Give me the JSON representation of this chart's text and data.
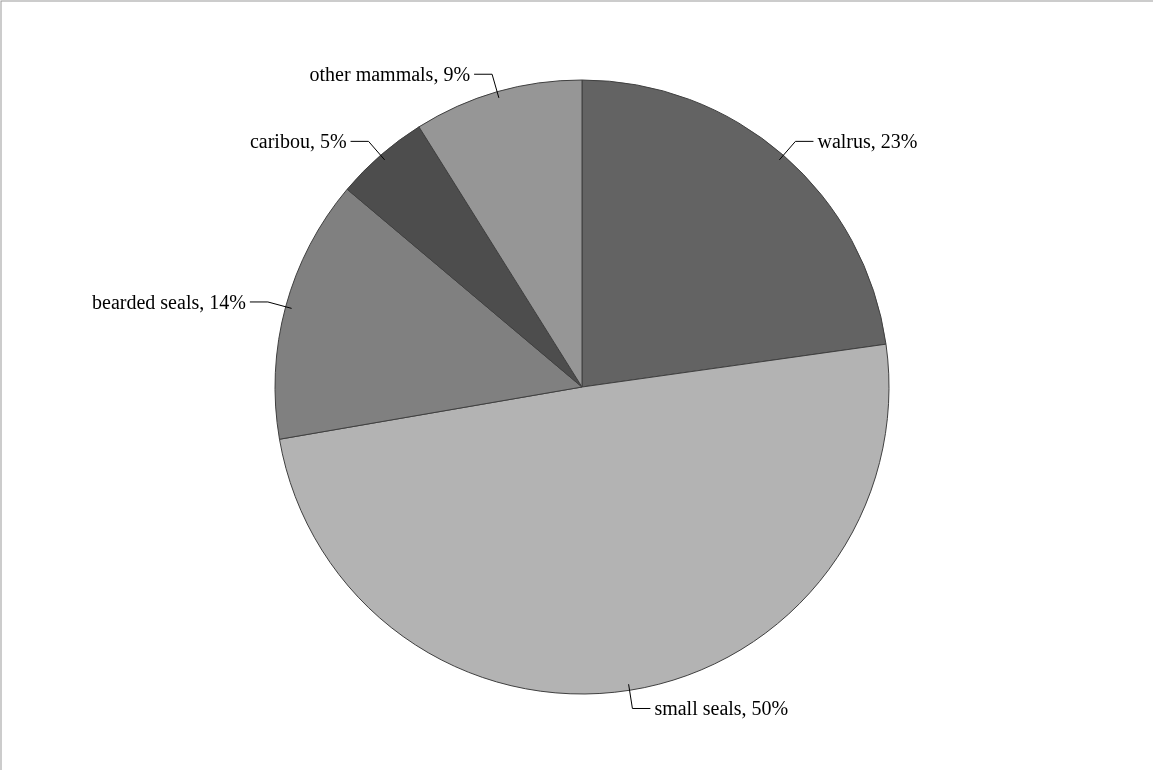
{
  "chart_data": {
    "type": "pie",
    "categories": [
      "walrus",
      "small seals",
      "bearded seals",
      "caribou",
      "other mammals"
    ],
    "values": [
      23,
      50,
      14,
      5,
      9
    ],
    "colors": [
      "#636363",
      "#b3b3b3",
      "#808080",
      "#4d4d4d",
      "#969696"
    ],
    "value_labels": [
      "23%",
      "50%",
      "14%",
      "5%",
      "9%"
    ]
  }
}
